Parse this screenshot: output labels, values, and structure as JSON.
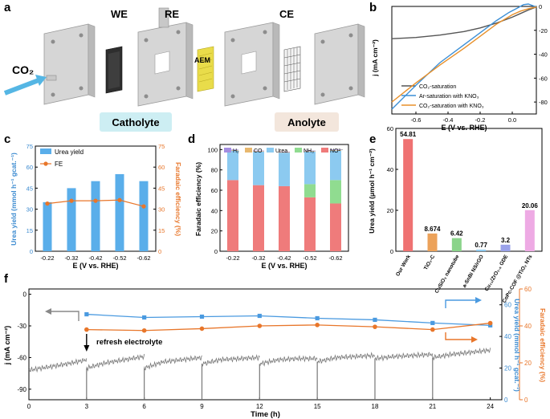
{
  "panels": {
    "a": {
      "letter": "a",
      "labels": {
        "we": "WE",
        "re": "RE",
        "ce": "CE",
        "aem": "AEM",
        "co2": "CO₂",
        "catholyte": "Catholyte",
        "anolyte": "Anolyte"
      },
      "colors": {
        "catholyte_box": "#cdeef3",
        "anolyte_box": "#f3e6dc",
        "co2_arrow": "#55b6e4"
      }
    },
    "b": {
      "letter": "b"
    },
    "c": {
      "letter": "c"
    },
    "d": {
      "letter": "d"
    },
    "e": {
      "letter": "e"
    },
    "f": {
      "letter": "f",
      "annotation": "refresh electrolyte"
    }
  },
  "chart_data": [
    {
      "id": "b",
      "type": "line",
      "xlabel": "E (V vs. RHE)",
      "ylabel": "j (mA cm⁻²)",
      "xlim": [
        -0.75,
        0.15
      ],
      "ylim": [
        -90,
        0
      ],
      "xticks": [
        -0.6,
        -0.4,
        -0.2,
        0.0
      ],
      "xticklabels": [
        "-0.6",
        "-0.4",
        "-0.2",
        "0.0"
      ],
      "yticks": [
        0,
        -20,
        -40,
        -60,
        -80
      ],
      "yticklabels": [
        "0",
        "-20",
        "-40",
        "-60",
        "-80"
      ],
      "grid": false,
      "legend": "bottom-right",
      "series": [
        {
          "name": "CO₂-saturation",
          "color": "#555555",
          "x": [
            -0.75,
            -0.6,
            -0.45,
            -0.3,
            -0.2,
            -0.1,
            0.0,
            0.05,
            0.1,
            0.15
          ],
          "y": [
            -27,
            -26,
            -24,
            -21,
            -18,
            -14,
            -9,
            -6,
            -3,
            -0.5
          ]
        },
        {
          "name": "Ar-saturation with KNO₃",
          "color": "#3c8fd6",
          "x": [
            -0.75,
            -0.6,
            -0.45,
            -0.3,
            -0.2,
            -0.1,
            -0.02,
            0.03,
            0.07,
            0.1,
            0.15
          ],
          "y": [
            -86,
            -66,
            -47,
            -32,
            -22,
            -12,
            -5,
            -1.5,
            1.5,
            2,
            -0.5
          ]
        },
        {
          "name": "CO₂-saturation with KNO₃",
          "color": "#e8902a",
          "x": [
            -0.75,
            -0.6,
            -0.45,
            -0.3,
            -0.2,
            -0.1,
            0.0,
            0.05,
            0.1,
            0.15
          ],
          "y": [
            -80,
            -64,
            -49,
            -35,
            -25,
            -15,
            -7,
            -4,
            -2,
            -0.5
          ]
        }
      ]
    },
    {
      "id": "c",
      "type": "bar",
      "xlabel": "E (V vs. RHE)",
      "ylabel": "Urea yield (mmol h⁻¹ gcat.⁻¹)",
      "ylabel2": "Faradaic efficiency (%)",
      "categories": [
        "-0.22",
        "-0.32",
        "-0.42",
        "-0.52",
        "-0.62"
      ],
      "ylim": [
        0,
        75
      ],
      "yticks": [
        0,
        15,
        30,
        45,
        60,
        75
      ],
      "yticklabels": [
        "0",
        "15",
        "30",
        "45",
        "60",
        "75"
      ],
      "ylim2": [
        0,
        75
      ],
      "yticks2": [
        0,
        15,
        30,
        45,
        60,
        75
      ],
      "yticklabels2": [
        "0",
        "15",
        "30",
        "45",
        "60",
        "75"
      ],
      "legend": "top-left",
      "series": [
        {
          "name": "Urea yield",
          "kind": "bar",
          "color": "#5aaeea",
          "values": [
            35,
            45,
            50,
            55,
            50
          ]
        },
        {
          "name": "FE",
          "kind": "line",
          "color": "#e8762a",
          "values": [
            34,
            36,
            36,
            36.5,
            32
          ]
        }
      ]
    },
    {
      "id": "d",
      "type": "bar",
      "stacked": true,
      "xlabel": "E (V vs. RHE)",
      "ylabel": "Faradaic efficiency (%)",
      "categories": [
        "-0.22",
        "-0.32",
        "-0.42",
        "-0.52",
        "-0.62"
      ],
      "ylim": [
        0,
        105
      ],
      "yticks": [
        0,
        20,
        40,
        60,
        80,
        100
      ],
      "yticklabels": [
        "0",
        "20",
        "40",
        "60",
        "80",
        "100"
      ],
      "legend": "top",
      "series": [
        {
          "name": "NO²⁻",
          "color": "#ef7b7b",
          "values": [
            70,
            65,
            64,
            53,
            47
          ]
        },
        {
          "name": "NH₃",
          "color": "#90dc90",
          "values": [
            0,
            0,
            0,
            13,
            23
          ]
        },
        {
          "name": "Urea",
          "color": "#8ccaf0",
          "values": [
            29,
            33,
            33,
            32,
            29
          ]
        },
        {
          "name": "CO",
          "color": "#e8b86e",
          "values": [
            0.5,
            0.5,
            0.5,
            0.5,
            0.5
          ]
        },
        {
          "name": "H₂",
          "color": "#a48ee0",
          "values": [
            0.5,
            0.5,
            0.5,
            0.5,
            0.5
          ]
        }
      ]
    },
    {
      "id": "e",
      "type": "bar",
      "ylabel": "Urea yield (μmol h⁻¹ cm⁻²)",
      "categories": [
        "Our Work",
        "TiO₂-C",
        "CuSiO₃ nanotube",
        "a-SnBi NS/rGO",
        "Cu₁₁/ZrO₂.₅ GDE",
        "CoPc-COF @TiO₂ NTs"
      ],
      "values": [
        54.81,
        8.674,
        6.42,
        0.77,
        3.2,
        20.06
      ],
      "valuelabels": [
        "54.81",
        "8.674",
        "6.42",
        "0.77",
        "3.2",
        "20.06"
      ],
      "colors": [
        "#ef7272",
        "#eca25a",
        "#8bd48b",
        "#8cc8ee",
        "#9aa2ea",
        "#eeaae4"
      ],
      "ylim": [
        0,
        60
      ],
      "yticks": [
        0,
        20,
        40,
        60
      ],
      "yticklabels": [
        "0",
        "20",
        "40",
        "60"
      ]
    },
    {
      "id": "f",
      "type": "line",
      "xlabel": "Time (h)",
      "ylabel": "j (mA cm⁻²)",
      "ylabel2": "Urea yield (mmol h⁻¹ gcat.⁻¹)",
      "ylabel3": "Faradaic efficiency (%)",
      "xlim": [
        0,
        24.6
      ],
      "xticks": [
        0,
        3,
        6,
        9,
        12,
        15,
        18,
        21,
        24
      ],
      "xticklabels": [
        "0",
        "3",
        "6",
        "9",
        "12",
        "15",
        "18",
        "21",
        "24"
      ],
      "ylim": [
        -100,
        5
      ],
      "yticks": [
        0,
        -30,
        -60,
        -90
      ],
      "yticklabels": [
        "0",
        "-30",
        "-60",
        "-90"
      ],
      "ylim2": [
        0,
        70
      ],
      "yticks2": [
        0,
        20,
        40,
        60
      ],
      "yticklabels2": [
        "0",
        "20",
        "40",
        "60"
      ],
      "ylim3": [
        0,
        60
      ],
      "yticks3": [
        0,
        20,
        40,
        60
      ],
      "yticklabels3": [
        "0",
        "20",
        "40",
        "60"
      ],
      "current_segments": [
        {
          "t": [
            0,
            1,
            2,
            3
          ],
          "j": [
            -72,
            -69,
            -66,
            -62
          ]
        },
        {
          "t": [
            3,
            4,
            5,
            6
          ],
          "j": [
            -70,
            -65,
            -62,
            -59
          ]
        },
        {
          "t": [
            6,
            7,
            8,
            9
          ],
          "j": [
            -70,
            -64,
            -62,
            -60
          ]
        },
        {
          "t": [
            9,
            10,
            11,
            12
          ],
          "j": [
            -66,
            -62,
            -61,
            -60
          ]
        },
        {
          "t": [
            12,
            13,
            14,
            15
          ],
          "j": [
            -66,
            -62,
            -61,
            -61
          ]
        },
        {
          "t": [
            15,
            16,
            17,
            18
          ],
          "j": [
            -64,
            -60,
            -59,
            -58
          ]
        },
        {
          "t": [
            18,
            19,
            20,
            21
          ],
          "j": [
            -61,
            -59,
            -58,
            -57
          ]
        },
        {
          "t": [
            21,
            22,
            23,
            24
          ],
          "j": [
            -60,
            -57,
            -55,
            -53
          ]
        }
      ],
      "current_color": "#777777",
      "series": [
        {
          "name": "Urea yield",
          "axis": "right1",
          "color": "#4a9ae0",
          "x": [
            3,
            6,
            9,
            12,
            15,
            18,
            21,
            24
          ],
          "y": [
            54,
            52,
            52.5,
            53,
            51.5,
            50.5,
            48.5,
            47
          ]
        },
        {
          "name": "FE",
          "axis": "right2",
          "color": "#e8762a",
          "x": [
            3,
            6,
            9,
            12,
            15,
            18,
            21,
            24
          ],
          "y": [
            38,
            37.5,
            38.5,
            40,
            40.5,
            39.5,
            38,
            41.5
          ]
        }
      ]
    }
  ]
}
